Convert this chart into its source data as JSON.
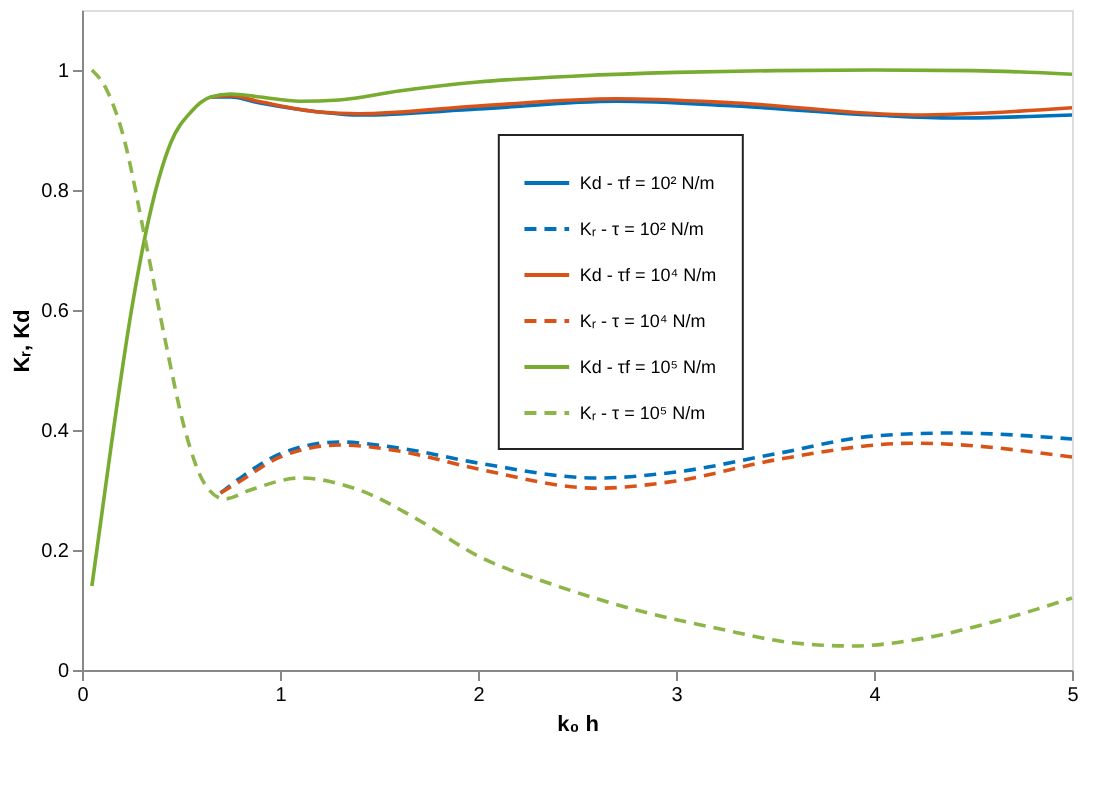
{
  "chart_data": {
    "type": "line",
    "xlabel": "k₀ h",
    "ylabel": "Kᵣ, Kd",
    "xlim": [
      0,
      5
    ],
    "xticks": [
      0,
      1,
      2,
      3,
      4,
      5
    ],
    "ylim": [
      0,
      1.1
    ],
    "yticks": [
      0,
      0.2,
      0.4,
      0.6,
      0.8,
      1
    ],
    "grid": false,
    "legend": "top",
    "marker": "none",
    "series": [
      {
        "name": "Kd - τf = 10² N/m",
        "color": "#0072bd",
        "line_style": "solid",
        "x": [
          0.65,
          0.75,
          0.9,
          1.2,
          1.4,
          2.0,
          2.7,
          3.3,
          4.0,
          4.4,
          5.0
        ],
        "values": [
          0.955,
          0.955,
          0.945,
          0.93,
          0.925,
          0.935,
          0.948,
          0.94,
          0.925,
          0.92,
          0.925
        ]
      },
      {
        "name": "Kᵣ - τ = 10² N/m",
        "color": "#0072bd",
        "line_style": "dashed",
        "x": [
          0.7,
          0.8,
          1.0,
          1.3,
          1.6,
          2.0,
          2.6,
          3.0,
          3.5,
          4.0,
          4.4,
          5.0
        ],
        "values": [
          0.295,
          0.32,
          0.36,
          0.38,
          0.37,
          0.345,
          0.32,
          0.33,
          0.36,
          0.39,
          0.395,
          0.385
        ]
      },
      {
        "name": "Kd - τf = 10⁴ N/m",
        "color": "#d95319",
        "line_style": "solid",
        "x": [
          0.65,
          0.75,
          0.9,
          1.2,
          1.4,
          2.0,
          2.7,
          3.3,
          4.2,
          5.0
        ],
        "values": [
          0.955,
          0.957,
          0.947,
          0.93,
          0.927,
          0.94,
          0.952,
          0.945,
          0.925,
          0.937
        ]
      },
      {
        "name": "Kᵣ - τ = 10⁴ N/m",
        "color": "#d95319",
        "line_style": "dashed",
        "x": [
          0.7,
          0.8,
          1.0,
          1.3,
          1.6,
          2.0,
          2.6,
          3.0,
          3.5,
          4.2,
          5.0
        ],
        "values": [
          0.295,
          0.315,
          0.355,
          0.375,
          0.365,
          0.335,
          0.303,
          0.315,
          0.35,
          0.378,
          0.355
        ]
      },
      {
        "name": "Kd - τf = 10⁵ N/m",
        "color": "#77ac30",
        "line_style": "solid",
        "x": [
          0.05,
          0.15,
          0.25,
          0.35,
          0.45,
          0.55,
          0.65,
          0.75,
          0.9,
          1.1,
          1.3,
          1.6,
          2.0,
          2.5,
          3.0,
          3.5,
          4.0,
          4.5,
          5.0
        ],
        "values": [
          0.14,
          0.38,
          0.6,
          0.77,
          0.88,
          0.93,
          0.955,
          0.96,
          0.955,
          0.948,
          0.95,
          0.965,
          0.98,
          0.99,
          0.996,
          0.999,
          1.0,
          0.999,
          0.993
        ]
      },
      {
        "name": "Kᵣ - τ = 10⁵ N/m",
        "color": "#8db548",
        "line_style": "dashed",
        "x": [
          0.05,
          0.12,
          0.2,
          0.33,
          0.42,
          0.52,
          0.62,
          0.72,
          0.85,
          1.1,
          1.4,
          1.7,
          2.0,
          2.4,
          2.8,
          3.2,
          3.6,
          3.9,
          4.2,
          4.6,
          5.0
        ],
        "values": [
          1.0,
          0.97,
          0.9,
          0.7,
          0.55,
          0.4,
          0.31,
          0.285,
          0.3,
          0.32,
          0.3,
          0.25,
          0.19,
          0.14,
          0.1,
          0.07,
          0.045,
          0.04,
          0.05,
          0.08,
          0.12
        ]
      }
    ]
  }
}
